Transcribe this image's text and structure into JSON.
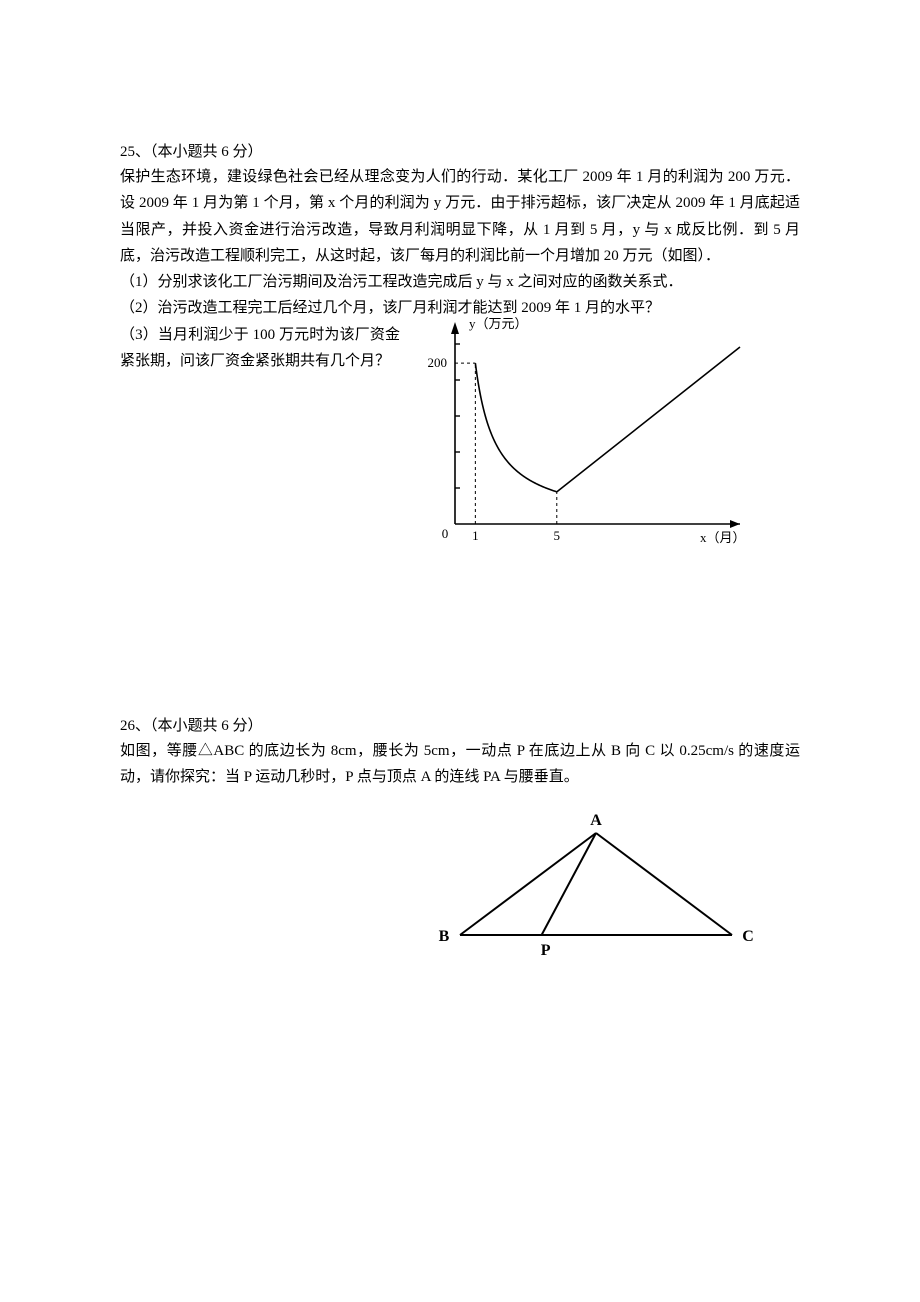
{
  "problems": [
    {
      "number": "25",
      "points_label": "（本小题共 6 分）",
      "body": "保护生态环境，建设绿色社会已经从理念变为人们的行动．某化工厂 2009 年 1 月的利润为 200 万元．设 2009 年 1 月为第 1 个月，第 x 个月的利润为 y 万元．由于排污超标，该厂决定从 2009 年 1 月底起适当限产，并投入资金进行治污改造，导致月利润明显下降，从 1 月到 5 月，y 与 x 成反比例．到 5 月底，治污改造工程顺利完工，从这时起，该厂每月的利润比前一个月增加 20 万元（如图）．",
      "subs": [
        "（1）分别求该化工厂治污期间及治污工程改造完成后 y 与 x 之间对应的函数关系式．",
        "（2）治污改造工程完工后经过几个月，该厂月利润才能达到 2009 年 1 月的水平？",
        "（3）当月利润少于 100 万元时为该厂资金紧张期，问该厂资金紧张期共有几个月？"
      ],
      "chart": {
        "type": "line",
        "origin_label": "0",
        "y_axis_label": "y（万元）",
        "x_axis_label": "x（月）",
        "x_ticks": [
          "1",
          "5"
        ],
        "y_ticks": [
          "200"
        ],
        "inverse_curve": {
          "x_start": 1,
          "x_end": 5,
          "k": 200
        },
        "linear": {
          "x_start": 5,
          "y_start": 40,
          "slope": 20,
          "x_end": 14
        },
        "axis_color": "#000000",
        "curve_color": "#000000",
        "dash_color": "#000000",
        "font_size": 13,
        "line_width": 1.6
      }
    },
    {
      "number": "26",
      "points_label": "（本小题共 6 分）",
      "body": "如图，等腰△ABC 的底边长为 8cm，腰长为 5cm，一动点 P 在底边上从 B 向 C 以 0.25cm/s 的速度运动，请你探究：当 P 运动几秒时，P 点与顶点 A 的连线 PA 与腰垂直。",
      "triangle": {
        "labels": {
          "A": "A",
          "B": "B",
          "C": "C",
          "P": "P"
        },
        "base": 8,
        "leg": 5,
        "line_color": "#000000",
        "font_size": 16,
        "font_weight": "bold",
        "line_width": 2
      }
    }
  ]
}
